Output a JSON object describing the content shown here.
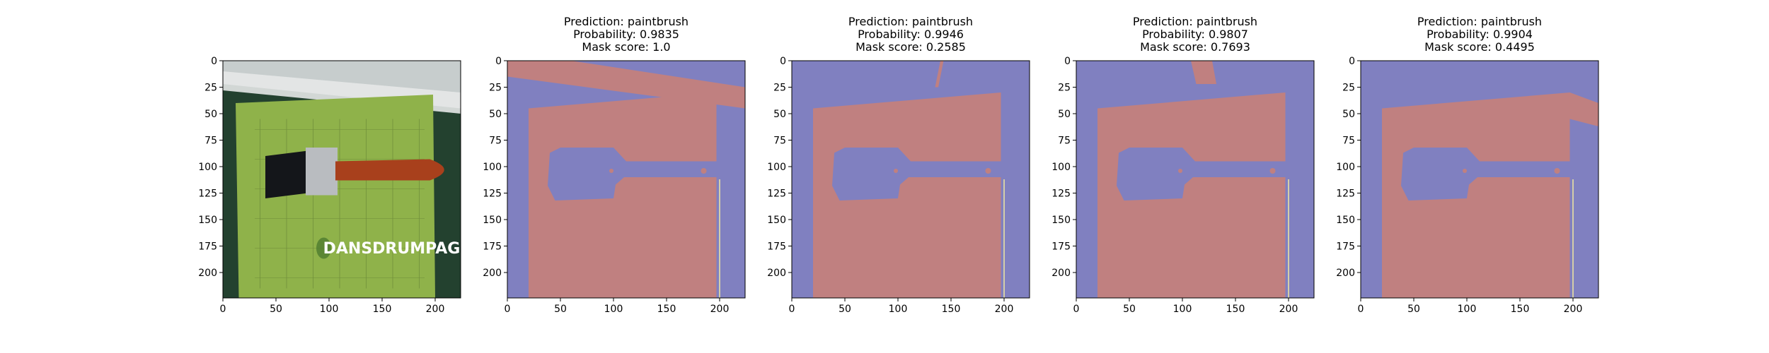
{
  "panels": [
    {
      "kind": "photo",
      "title_lines": [],
      "overlay_text": "DANSDRUMPAGE"
    },
    {
      "kind": "mask",
      "title_lines": [
        "Prediction: paintbrush",
        "Probability: 0.9835",
        "Mask score: 1.0"
      ]
    },
    {
      "kind": "mask",
      "title_lines": [
        "Prediction: paintbrush",
        "Probability: 0.9946",
        "Mask score: 0.2585"
      ]
    },
    {
      "kind": "mask",
      "title_lines": [
        "Prediction: paintbrush",
        "Probability: 0.9807",
        "Mask score: 0.7693"
      ]
    },
    {
      "kind": "mask",
      "title_lines": [
        "Prediction: paintbrush",
        "Probability: 0.9904",
        "Mask score: 0.4495"
      ]
    }
  ],
  "axes": {
    "x_ticks": [
      "0",
      "50",
      "100",
      "150",
      "200"
    ],
    "y_ticks": [
      "0",
      "25",
      "50",
      "75",
      "100",
      "125",
      "150",
      "175",
      "200"
    ]
  },
  "colors": {
    "mask_background": "#8080c0",
    "mask_foreground": "#c08080",
    "photo_paper": "#8fb24a",
    "brush_handle": "#a8401c"
  }
}
